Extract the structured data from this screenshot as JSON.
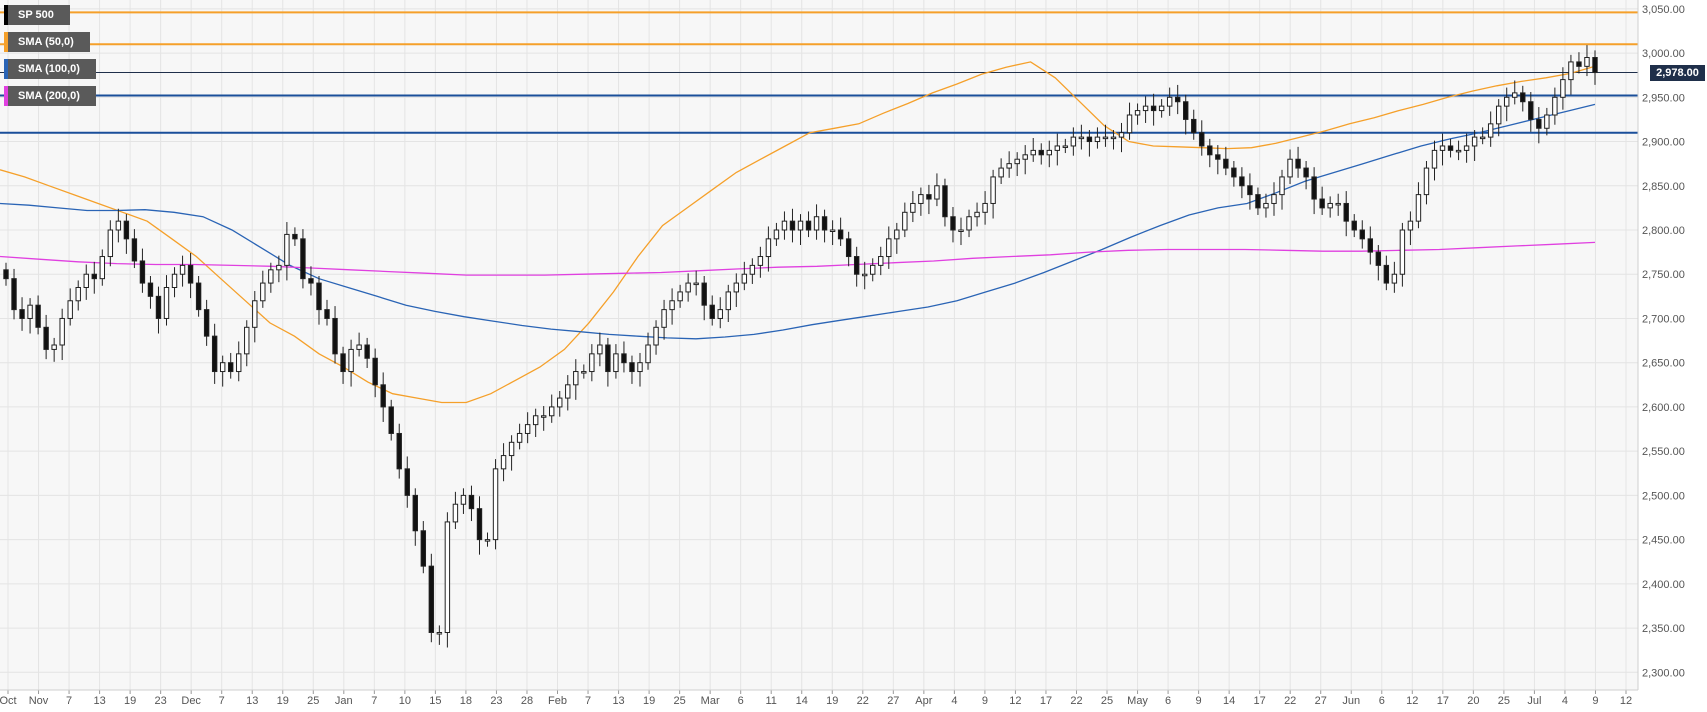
{
  "legend": [
    {
      "label": "SP 500",
      "color": "#000000"
    },
    {
      "label": "SMA (50,0)",
      "color": "#f5a02a"
    },
    {
      "label": "SMA (100,0)",
      "color": "#2a64b5"
    },
    {
      "label": "SMA (200,0)",
      "color": "#e040e0"
    }
  ],
  "chart_data": {
    "type": "candlestick",
    "symbol": "SP 500",
    "y_range": [
      2280,
      3060
    ],
    "y_ticks": [
      "2,300.00",
      "2,350.00",
      "2,400.00",
      "2,450.00",
      "2,500.00",
      "2,550.00",
      "2,600.00",
      "2,650.00",
      "2,700.00",
      "2,750.00",
      "2,800.00",
      "2,850.00",
      "2,900.00",
      "2,950.00",
      "3,000.00",
      "3,050.00"
    ],
    "x_ticks": [
      "Oct",
      "Nov",
      "7",
      "13",
      "19",
      "23",
      "Dec",
      "7",
      "13",
      "19",
      "25",
      "Jan",
      "7",
      "10",
      "15",
      "18",
      "23",
      "28",
      "Feb",
      "7",
      "13",
      "19",
      "25",
      "Mar",
      "6",
      "11",
      "14",
      "19",
      "22",
      "27",
      "Apr",
      "4",
      "9",
      "12",
      "17",
      "22",
      "25",
      "May",
      "6",
      "9",
      "14",
      "17",
      "22",
      "27",
      "Jun",
      "6",
      "12",
      "17",
      "20",
      "25",
      "Jul",
      "4",
      "9",
      "12"
    ],
    "last_price": "2,978.00",
    "grid": true,
    "horizontal_levels": [
      {
        "value": 3046,
        "color": "#f5a02a"
      },
      {
        "value": 3010,
        "color": "#f5a02a"
      },
      {
        "value": 2978,
        "color": "#1f2f4a"
      },
      {
        "value": 2952,
        "color": "#1a4f9a"
      },
      {
        "value": 2910,
        "color": "#1a4f9a"
      }
    ],
    "ohlc_closes": [
      2745,
      2710,
      2700,
      2715,
      2690,
      2665,
      2670,
      2700,
      2720,
      2735,
      2750,
      2745,
      2770,
      2800,
      2810,
      2790,
      2765,
      2740,
      2725,
      2700,
      2735,
      2750,
      2760,
      2740,
      2710,
      2680,
      2640,
      2650,
      2640,
      2660,
      2690,
      2720,
      2740,
      2755,
      2760,
      2795,
      2790,
      2745,
      2740,
      2710,
      2700,
      2660,
      2640,
      2665,
      2670,
      2655,
      2625,
      2600,
      2570,
      2530,
      2500,
      2460,
      2420,
      2345,
      2345,
      2470,
      2490,
      2500,
      2485,
      2450,
      2450,
      2530,
      2545,
      2560,
      2570,
      2580,
      2590,
      2590,
      2600,
      2610,
      2625,
      2640,
      2640,
      2660,
      2670,
      2640,
      2660,
      2650,
      2640,
      2650,
      2670,
      2690,
      2710,
      2720,
      2730,
      2740,
      2740,
      2715,
      2700,
      2710,
      2730,
      2740,
      2750,
      2760,
      2770,
      2790,
      2800,
      2810,
      2800,
      2810,
      2800,
      2815,
      2800,
      2800,
      2790,
      2770,
      2750,
      2750,
      2760,
      2770,
      2790,
      2800,
      2820,
      2830,
      2840,
      2835,
      2850,
      2815,
      2800,
      2800,
      2815,
      2820,
      2830,
      2860,
      2870,
      2875,
      2880,
      2885,
      2890,
      2885,
      2890,
      2895,
      2895,
      2905,
      2905,
      2900,
      2905,
      2905,
      2905,
      2910,
      2930,
      2935,
      2940,
      2935,
      2940,
      2950,
      2945,
      2925,
      2910,
      2895,
      2885,
      2880,
      2870,
      2860,
      2850,
      2840,
      2825,
      2830,
      2840,
      2860,
      2880,
      2870,
      2860,
      2835,
      2825,
      2830,
      2830,
      2810,
      2800,
      2790,
      2775,
      2760,
      2740,
      2750,
      2800,
      2810,
      2840,
      2870,
      2890,
      2895,
      2890,
      2890,
      2895,
      2905,
      2905,
      2920,
      2940,
      2950,
      2955,
      2945,
      2925,
      2915,
      2930,
      2950,
      2970,
      2990,
      2985,
      2995,
      2978
    ],
    "series": [
      {
        "name": "SMA (50,0)",
        "color": "#f5a02a",
        "values": [
          2868,
          2860,
          2850,
          2840,
          2830,
          2820,
          2810,
          2790,
          2770,
          2745,
          2720,
          2695,
          2680,
          2660,
          2645,
          2628,
          2615,
          2610,
          2605,
          2605,
          2615,
          2630,
          2645,
          2665,
          2695,
          2730,
          2770,
          2805,
          2825,
          2845,
          2865,
          2880,
          2895,
          2910,
          2915,
          2920,
          2932,
          2943,
          2955,
          2965,
          2976,
          2984,
          2990,
          2972,
          2945,
          2918,
          2900,
          2895,
          2894,
          2893,
          2892,
          2893,
          2898,
          2905,
          2912,
          2920,
          2927,
          2935,
          2942,
          2950,
          2957,
          2963,
          2968,
          2972,
          2977,
          2985
        ]
      },
      {
        "name": "SMA (100,0)",
        "color": "#2a64b5",
        "values": [
          2830,
          2828,
          2825,
          2822,
          2822,
          2823,
          2820,
          2815,
          2800,
          2780,
          2760,
          2745,
          2735,
          2725,
          2715,
          2708,
          2702,
          2697,
          2692,
          2688,
          2685,
          2682,
          2680,
          2678,
          2677,
          2679,
          2682,
          2687,
          2693,
          2698,
          2703,
          2708,
          2713,
          2720,
          2730,
          2740,
          2752,
          2765,
          2778,
          2792,
          2805,
          2817,
          2825,
          2830,
          2842,
          2855,
          2865,
          2875,
          2885,
          2895,
          2903,
          2910,
          2918,
          2926,
          2934,
          2942
        ]
      },
      {
        "name": "SMA (200,0)",
        "color": "#e040e0",
        "values": [
          2770,
          2767,
          2764,
          2762,
          2761,
          2761,
          2760,
          2759,
          2757,
          2755,
          2753,
          2751,
          2749,
          2749,
          2749,
          2750,
          2751,
          2752,
          2754,
          2756,
          2758,
          2759,
          2761,
          2763,
          2765,
          2768,
          2770,
          2772,
          2775,
          2777,
          2778,
          2778,
          2778,
          2777,
          2776,
          2776,
          2777,
          2778,
          2780,
          2782,
          2784,
          2786
        ]
      }
    ]
  }
}
